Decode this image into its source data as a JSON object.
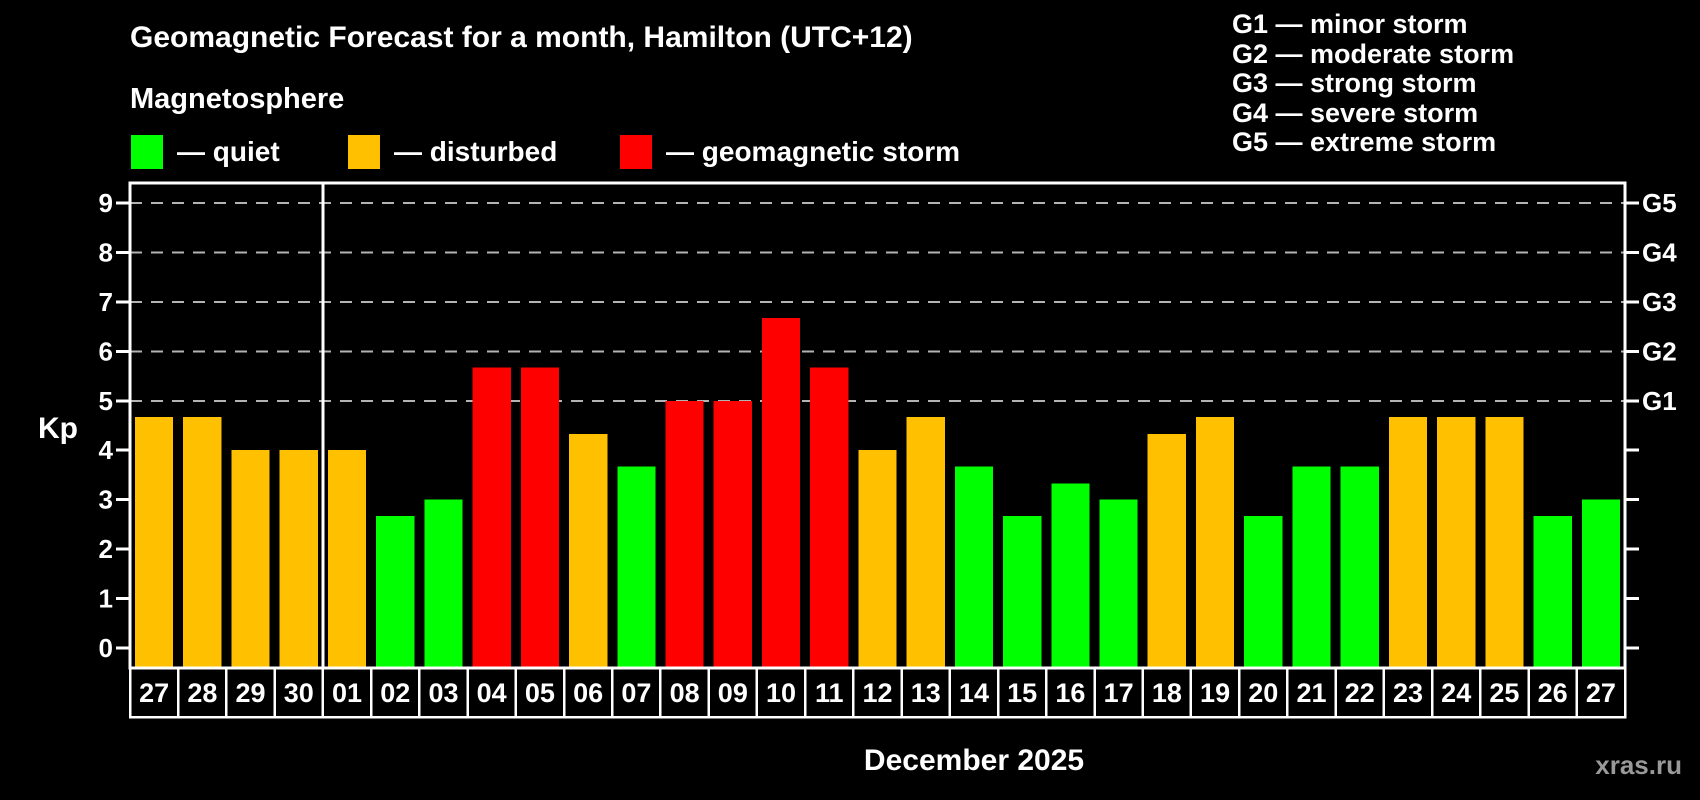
{
  "header": {
    "title": "Geomagnetic Forecast for a month, Hamilton (UTC+12)",
    "subtitle": "Magnetosphere"
  },
  "legend": {
    "items": [
      {
        "key": "quiet",
        "label": "— quiet",
        "color": "#00ff00"
      },
      {
        "key": "disturbed",
        "label": "— disturbed",
        "color": "#ffc000"
      },
      {
        "key": "storm",
        "label": "— geomagnetic storm",
        "color": "#ff0000"
      }
    ]
  },
  "g_legend": {
    "items": [
      "G1 — minor storm",
      "G2 — moderate storm",
      "G3 — strong storm",
      "G4 — severe storm",
      "G5 — extreme storm"
    ]
  },
  "footer": {
    "month_label": "December 2025",
    "watermark": "xras.ru"
  },
  "chart_data": {
    "type": "bar",
    "title": "Geomagnetic Forecast for a month, Hamilton (UTC+12)",
    "ylabel": "Kp",
    "xlabel": "December 2025",
    "ylim": [
      -0.4,
      9.4
    ],
    "y_ticks": [
      0,
      1,
      2,
      3,
      4,
      5,
      6,
      7,
      8,
      9
    ],
    "grid_levels_kp": [
      5,
      6,
      7,
      8,
      9
    ],
    "right_axis": [
      {
        "kp": 5,
        "label": "G1"
      },
      {
        "kp": 6,
        "label": "G2"
      },
      {
        "kp": 7,
        "label": "G3"
      },
      {
        "kp": 8,
        "label": "G4"
      },
      {
        "kp": 9,
        "label": "G5"
      }
    ],
    "month_boundary_after_index": 3,
    "categories": [
      "27",
      "28",
      "29",
      "30",
      "01",
      "02",
      "03",
      "04",
      "05",
      "06",
      "07",
      "08",
      "09",
      "10",
      "11",
      "12",
      "13",
      "14",
      "15",
      "16",
      "17",
      "18",
      "19",
      "20",
      "21",
      "22",
      "23",
      "24",
      "25",
      "26",
      "27"
    ],
    "values": [
      4.67,
      4.67,
      4.0,
      4.0,
      4.0,
      2.67,
      3.0,
      5.67,
      5.67,
      4.33,
      3.67,
      5.0,
      5.0,
      6.67,
      5.67,
      4.0,
      4.67,
      3.67,
      2.67,
      3.33,
      3.0,
      4.33,
      4.67,
      2.67,
      3.67,
      3.67,
      4.67,
      4.67,
      4.67,
      2.67,
      3.0
    ],
    "statuses": [
      "disturbed",
      "disturbed",
      "disturbed",
      "disturbed",
      "disturbed",
      "quiet",
      "quiet",
      "storm",
      "storm",
      "disturbed",
      "quiet",
      "storm",
      "storm",
      "storm",
      "storm",
      "disturbed",
      "disturbed",
      "quiet",
      "quiet",
      "quiet",
      "quiet",
      "disturbed",
      "disturbed",
      "quiet",
      "quiet",
      "quiet",
      "disturbed",
      "disturbed",
      "disturbed",
      "quiet",
      "quiet"
    ],
    "status_colors": {
      "quiet": "#00ff00",
      "disturbed": "#ffc000",
      "storm": "#ff0000"
    },
    "grid_color": "#b3b3b3",
    "axis_color": "#ffffff",
    "legend_position": "top"
  }
}
